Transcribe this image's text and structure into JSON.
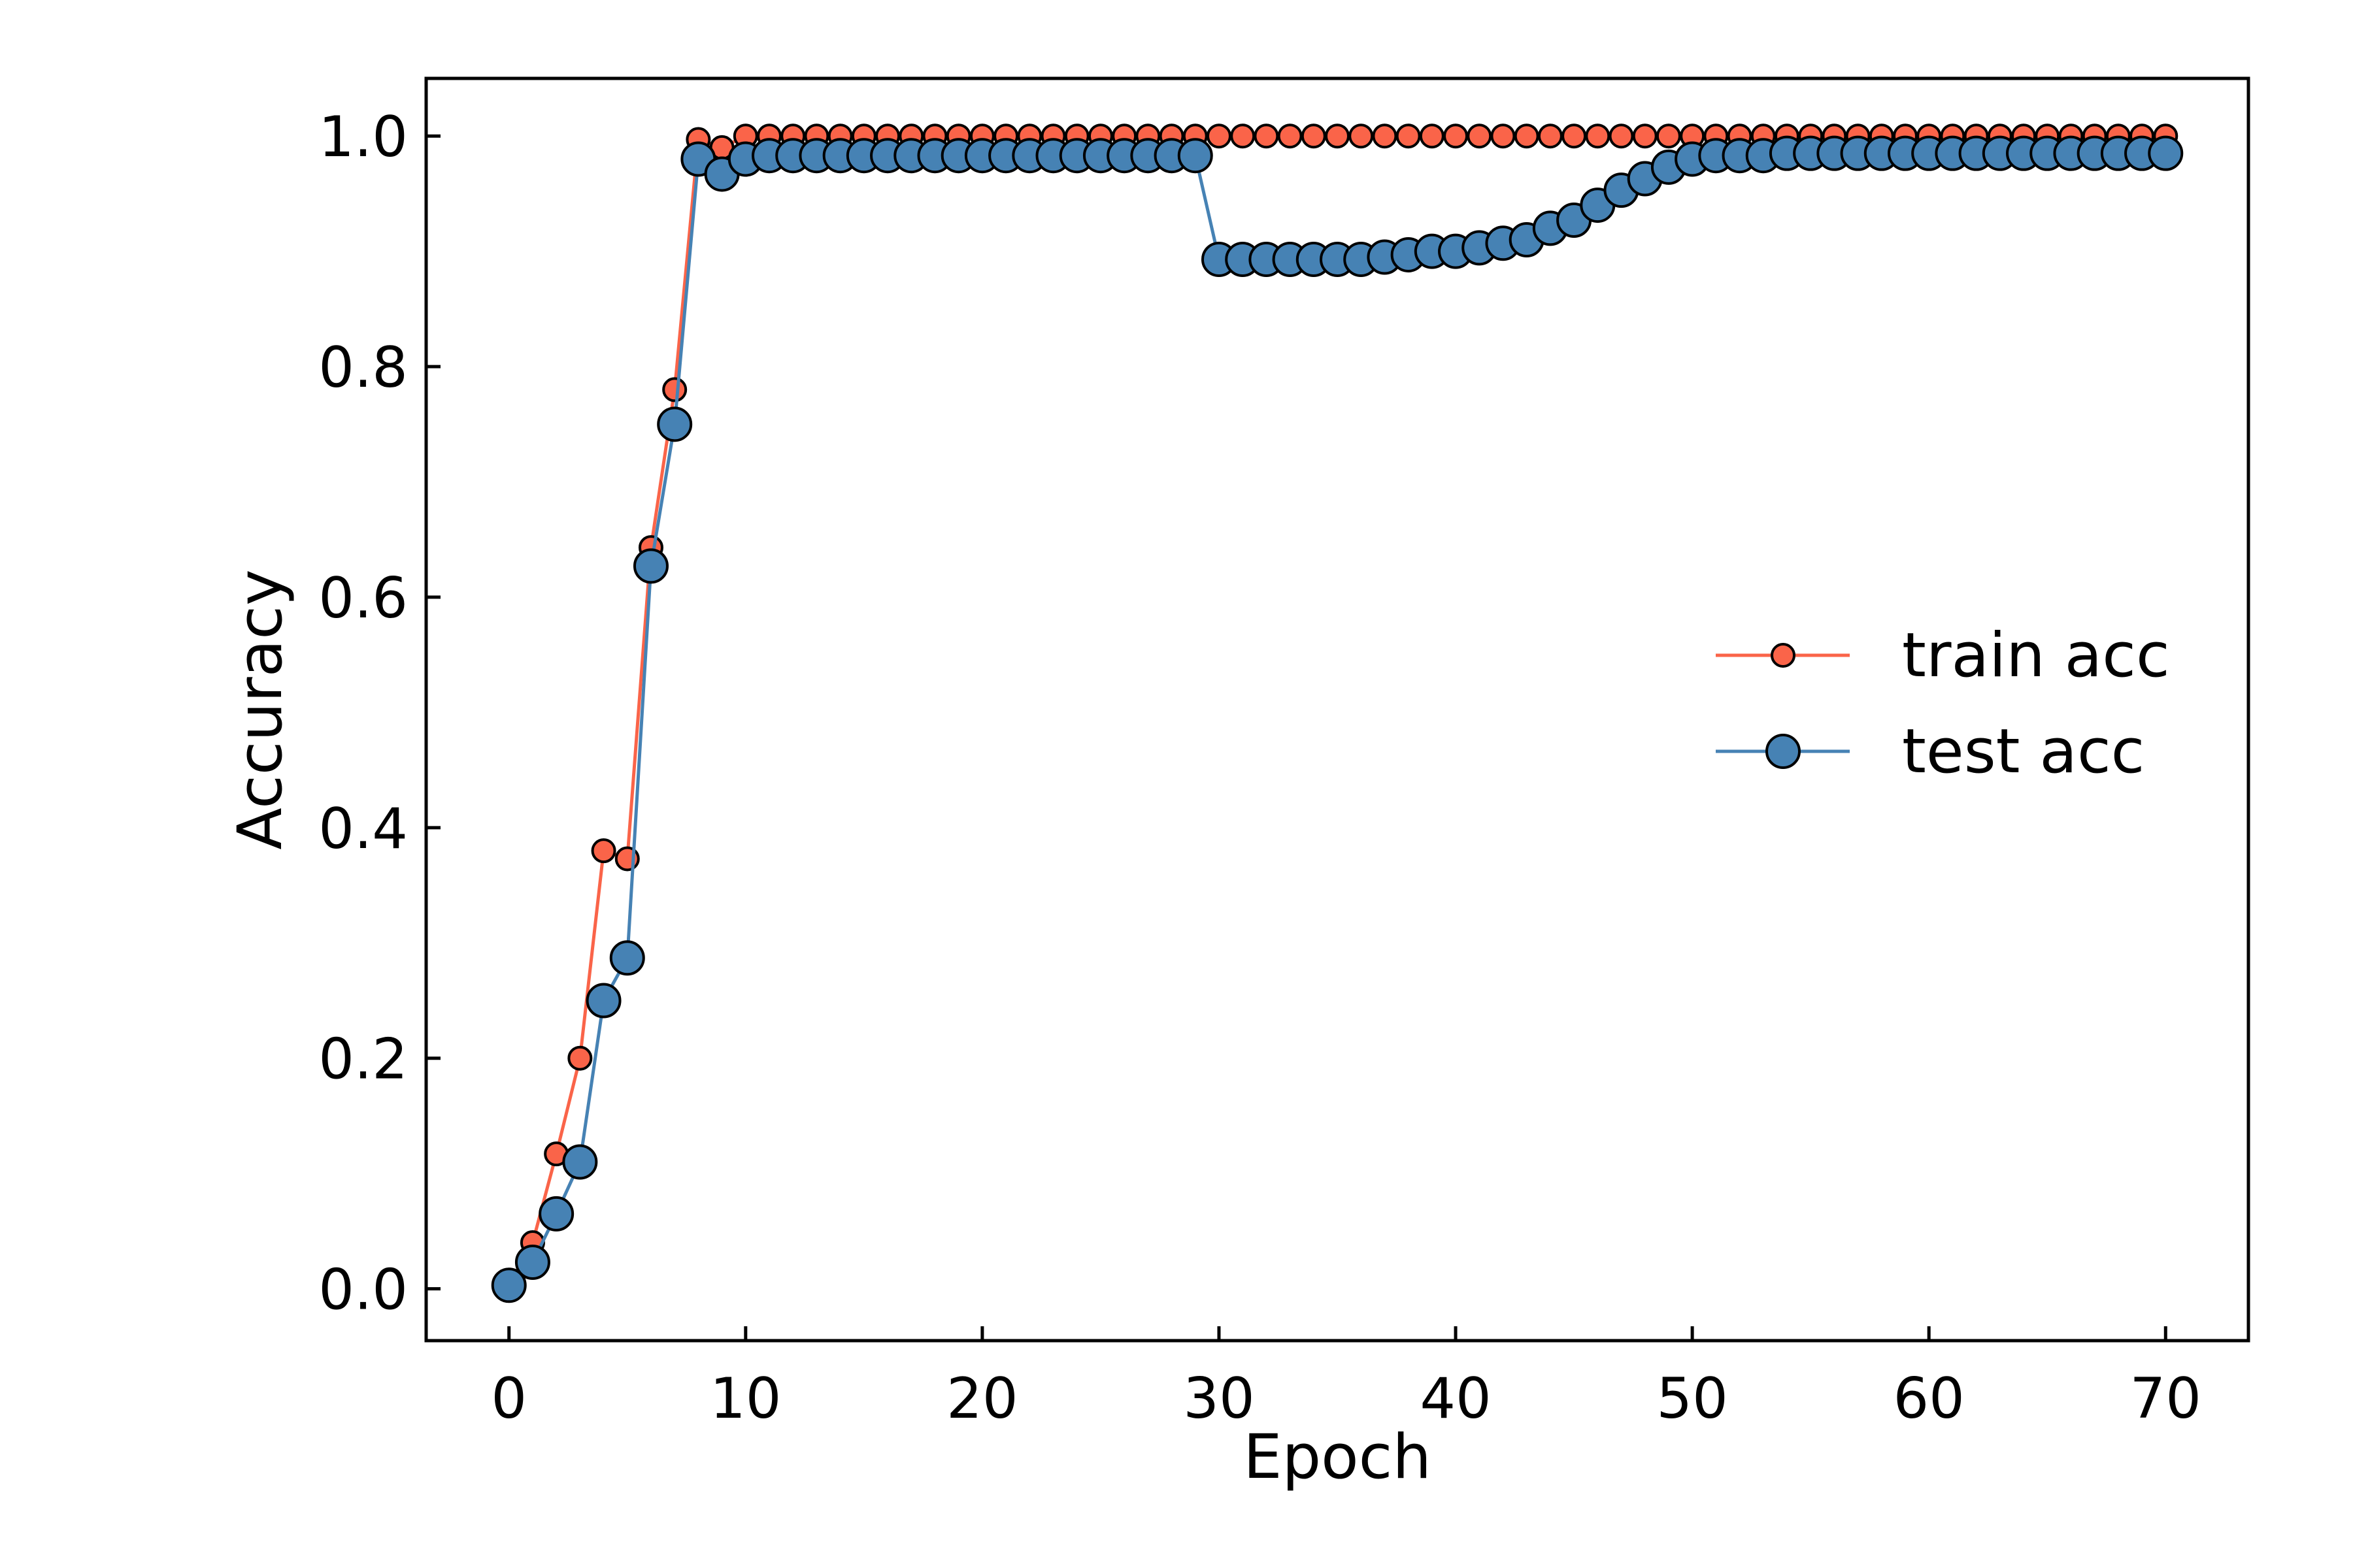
{
  "chart_data": {
    "type": "line",
    "title": "",
    "xlabel": "Epoch",
    "ylabel": "Accuracy",
    "xlim": [
      -3.5,
      73.5
    ],
    "ylim": [
      -0.045,
      1.05
    ],
    "x_ticks": [
      0,
      10,
      20,
      30,
      40,
      50,
      60,
      70
    ],
    "y_ticks": [
      "0.0",
      "0.2",
      "0.4",
      "0.6",
      "0.8",
      "1.0"
    ],
    "grid": false,
    "legend_position": "center-right",
    "x": [
      0,
      1,
      2,
      3,
      4,
      5,
      6,
      7,
      8,
      9,
      10,
      11,
      12,
      13,
      14,
      15,
      16,
      17,
      18,
      19,
      20,
      21,
      22,
      23,
      24,
      25,
      26,
      27,
      28,
      29,
      30,
      31,
      32,
      33,
      34,
      35,
      36,
      37,
      38,
      39,
      40,
      41,
      42,
      43,
      44,
      45,
      46,
      47,
      48,
      49,
      50,
      51,
      52,
      53,
      54,
      55,
      56,
      57,
      58,
      59,
      60,
      61,
      62,
      63,
      64,
      65,
      66,
      67,
      68,
      69,
      70
    ],
    "series": [
      {
        "name": "train acc",
        "color": "#fa6449",
        "marker": "small-circle",
        "values": [
          0.003,
          0.04,
          0.117,
          0.2,
          0.38,
          0.373,
          0.643,
          0.78,
          0.997,
          0.99,
          1.0,
          1.0,
          1.0,
          1.0,
          1.0,
          1.0,
          1.0,
          1.0,
          1.0,
          1.0,
          1.0,
          1.0,
          1.0,
          1.0,
          1.0,
          1.0,
          1.0,
          1.0,
          1.0,
          1.0,
          1.0,
          1.0,
          1.0,
          1.0,
          1.0,
          1.0,
          1.0,
          1.0,
          1.0,
          1.0,
          1.0,
          1.0,
          1.0,
          1.0,
          1.0,
          1.0,
          1.0,
          1.0,
          1.0,
          1.0,
          1.0,
          1.0,
          1.0,
          1.0,
          1.0,
          1.0,
          1.0,
          1.0,
          1.0,
          1.0,
          1.0,
          1.0,
          1.0,
          1.0,
          1.0,
          1.0,
          1.0,
          1.0,
          1.0,
          1.0,
          1.0
        ]
      },
      {
        "name": "test acc",
        "color": "#4682b4",
        "marker": "large-circle",
        "values": [
          0.003,
          0.023,
          0.065,
          0.11,
          0.25,
          0.287,
          0.627,
          0.75,
          0.98,
          0.967,
          0.98,
          0.983,
          0.983,
          0.983,
          0.983,
          0.983,
          0.983,
          0.983,
          0.983,
          0.983,
          0.983,
          0.983,
          0.983,
          0.983,
          0.983,
          0.983,
          0.983,
          0.983,
          0.983,
          0.983,
          0.893,
          0.893,
          0.893,
          0.893,
          0.893,
          0.893,
          0.893,
          0.895,
          0.897,
          0.9,
          0.9,
          0.903,
          0.907,
          0.91,
          0.92,
          0.927,
          0.94,
          0.953,
          0.963,
          0.973,
          0.98,
          0.983,
          0.983,
          0.983,
          0.985,
          0.985,
          0.985,
          0.985,
          0.985,
          0.985,
          0.985,
          0.985,
          0.985,
          0.985,
          0.985,
          0.985,
          0.985,
          0.985,
          0.985,
          0.985,
          0.985
        ]
      }
    ]
  }
}
